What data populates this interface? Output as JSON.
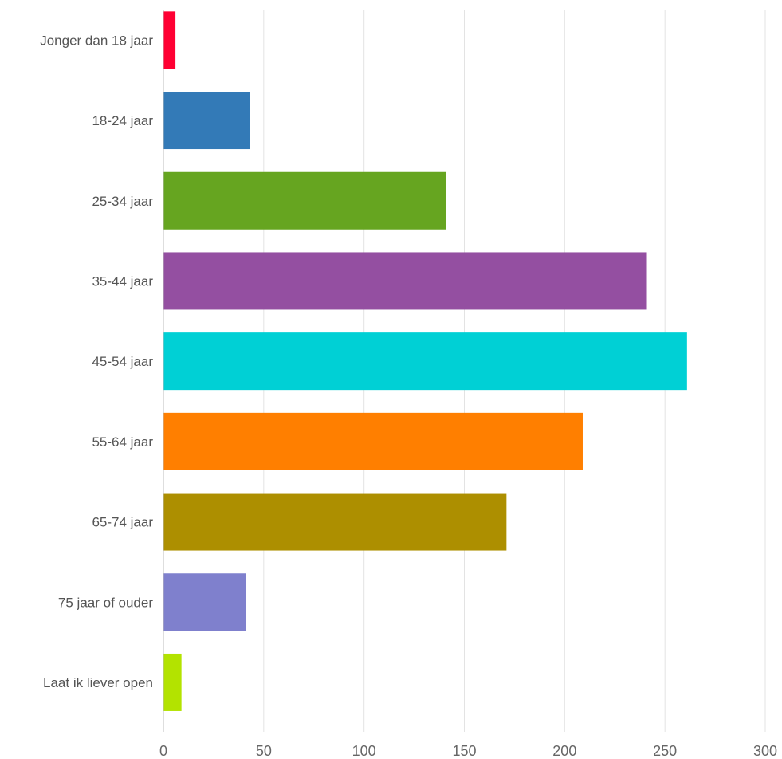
{
  "chart_data": {
    "type": "bar",
    "orientation": "horizontal",
    "categories": [
      "Jonger dan 18 jaar",
      "18-24 jaar",
      "25-34 jaar",
      "35-44 jaar",
      "45-54 jaar",
      "55-64 jaar",
      "65-74 jaar",
      "75 jaar of ouder",
      "Laat ik liever open"
    ],
    "values": [
      6,
      43,
      141,
      241,
      261,
      209,
      171,
      41,
      9
    ],
    "colors": [
      "#ff0033",
      "#337ab7",
      "#66a520",
      "#944fa1",
      "#00d0d5",
      "#ff7f00",
      "#ad8f00",
      "#7f80cd",
      "#b3e300"
    ],
    "xlim": [
      0,
      300
    ],
    "xticks": [
      "0",
      "50",
      "100",
      "150",
      "200",
      "250",
      "300"
    ],
    "grid": true,
    "legend": false,
    "title": "",
    "xlabel": "",
    "ylabel": ""
  }
}
